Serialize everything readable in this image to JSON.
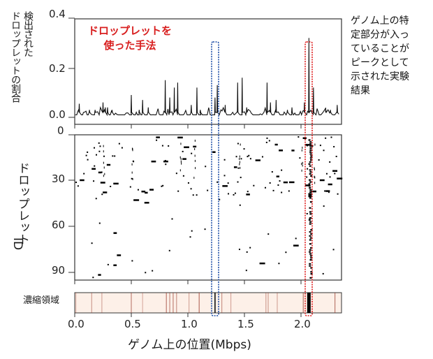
{
  "chart_data": [
    {
      "type": "line",
      "title": "ドロップレットを使った手法",
      "ylabel": "検出されたドロップレットの割合",
      "xlabel": "ゲノム上の位置(Mbps)",
      "ylim": [
        0,
        0.4
      ],
      "yticks": [
        "0.4",
        "0.2",
        "0.0"
      ],
      "xlim": [
        0,
        2.35
      ],
      "xticks": [
        "0.0",
        "0.5",
        "1.0",
        "1.5",
        "2.0"
      ],
      "grid": false,
      "annotation": "ゲノム上の特定部分が入っていることがピークとして示された実験結果",
      "baseline": 0.01,
      "peaks": [
        {
          "x": 0.04,
          "y": 0.055
        },
        {
          "x": 0.08,
          "y": 0.02
        },
        {
          "x": 0.13,
          "y": 0.03
        },
        {
          "x": 0.18,
          "y": 0.03
        },
        {
          "x": 0.25,
          "y": 0.06
        },
        {
          "x": 0.27,
          "y": 0.04
        },
        {
          "x": 0.29,
          "y": 0.04
        },
        {
          "x": 0.33,
          "y": 0.03
        },
        {
          "x": 0.5,
          "y": 0.09
        },
        {
          "x": 0.57,
          "y": 0.03
        },
        {
          "x": 0.6,
          "y": 0.07
        },
        {
          "x": 0.65,
          "y": 0.04
        },
        {
          "x": 0.8,
          "y": 0.15
        },
        {
          "x": 0.84,
          "y": 0.08
        },
        {
          "x": 0.88,
          "y": 0.12
        },
        {
          "x": 0.91,
          "y": 0.14
        },
        {
          "x": 1.03,
          "y": 0.05
        },
        {
          "x": 1.08,
          "y": 0.12
        },
        {
          "x": 1.11,
          "y": 0.03
        },
        {
          "x": 1.24,
          "y": 0.08
        },
        {
          "x": 1.26,
          "y": 0.13
        },
        {
          "x": 1.33,
          "y": 0.05
        },
        {
          "x": 1.44,
          "y": 0.14
        },
        {
          "x": 1.48,
          "y": 0.16
        },
        {
          "x": 1.52,
          "y": 0.04
        },
        {
          "x": 1.7,
          "y": 0.14
        },
        {
          "x": 1.73,
          "y": 0.06
        },
        {
          "x": 1.78,
          "y": 0.07
        },
        {
          "x": 1.88,
          "y": 0.03
        },
        {
          "x": 1.92,
          "y": 0.04
        },
        {
          "x": 2.03,
          "y": 0.06
        },
        {
          "x": 2.07,
          "y": 0.32
        },
        {
          "x": 2.11,
          "y": 0.12
        },
        {
          "x": 2.22,
          "y": 0.03
        },
        {
          "x": 2.26,
          "y": 0.03
        },
        {
          "x": 2.32,
          "y": 0.05
        }
      ]
    },
    {
      "type": "scatter",
      "title": "",
      "ylabel": "ドロップレットID",
      "xlabel": "ゲノム上の位置(Mbps)",
      "ylim": [
        0,
        95
      ],
      "yticks": [
        "0",
        "30",
        "60",
        "90"
      ],
      "xlim": [
        0,
        2.35
      ],
      "description": "Raster of detected genomic fragments per droplet (binary presence marks); a dense vertical streak near 2.07 Mbps"
    },
    {
      "type": "heatmap",
      "label": "濃縮領域",
      "xlim": [
        0,
        2.35
      ],
      "background_color": "#fdf0e8",
      "stripes": [
        {
          "x": 0.01,
          "intensity": 0.2
        },
        {
          "x": 0.15,
          "intensity": 0.3
        },
        {
          "x": 0.24,
          "intensity": 0.25
        },
        {
          "x": 0.5,
          "intensity": 0.45
        },
        {
          "x": 0.6,
          "intensity": 0.2
        },
        {
          "x": 0.81,
          "intensity": 0.5
        },
        {
          "x": 0.84,
          "intensity": 0.4
        },
        {
          "x": 0.87,
          "intensity": 0.45
        },
        {
          "x": 0.9,
          "intensity": 0.35
        },
        {
          "x": 1.01,
          "intensity": 0.25
        },
        {
          "x": 1.1,
          "intensity": 0.55
        },
        {
          "x": 1.24,
          "intensity": 1.0
        },
        {
          "x": 1.3,
          "intensity": 0.35
        },
        {
          "x": 1.38,
          "intensity": 0.25
        },
        {
          "x": 1.69,
          "intensity": 0.3
        },
        {
          "x": 1.71,
          "intensity": 0.3
        },
        {
          "x": 1.79,
          "intensity": 0.25
        },
        {
          "x": 2.02,
          "intensity": 0.55
        },
        {
          "x": 2.07,
          "intensity": 1.0
        },
        {
          "x": 2.3,
          "intensity": 0.5
        }
      ]
    }
  ],
  "labels": {
    "top_ylabel": "検出されたドロップレットの割合",
    "top_ylabel_line1": "検出された",
    "top_ylabel_line2": "ドロップレットの割合",
    "method_title_line1": "ドロップレットを",
    "method_title_line2": "使った手法",
    "side_note": [
      "ゲノム上の特",
      "定部分が入っ",
      "ていることが",
      "ピークとして",
      "示された実験",
      "結果"
    ],
    "mid_ylabel": "ドロップレットID",
    "mid_ylabel_main": "ドロップレット",
    "mid_ylabel_id": "ID",
    "bottom_label": "濃縮領域",
    "xlabel": "ゲノム上の位置(Mbps)",
    "top_yticks": [
      "0.4",
      "0.2",
      "0.0"
    ],
    "mid_yticks": [
      "0",
      "30",
      "60",
      "90"
    ],
    "xticks": [
      "0.0",
      "0.5",
      "1.0",
      "1.5",
      "2.0"
    ]
  },
  "colors": {
    "method_title": "#d81e1e",
    "highlight_blue": "#1f4fa8",
    "highlight_red": "#e02020",
    "heat_bg": "#fdf0e8",
    "heat_stripe": "#9a3b2c"
  }
}
